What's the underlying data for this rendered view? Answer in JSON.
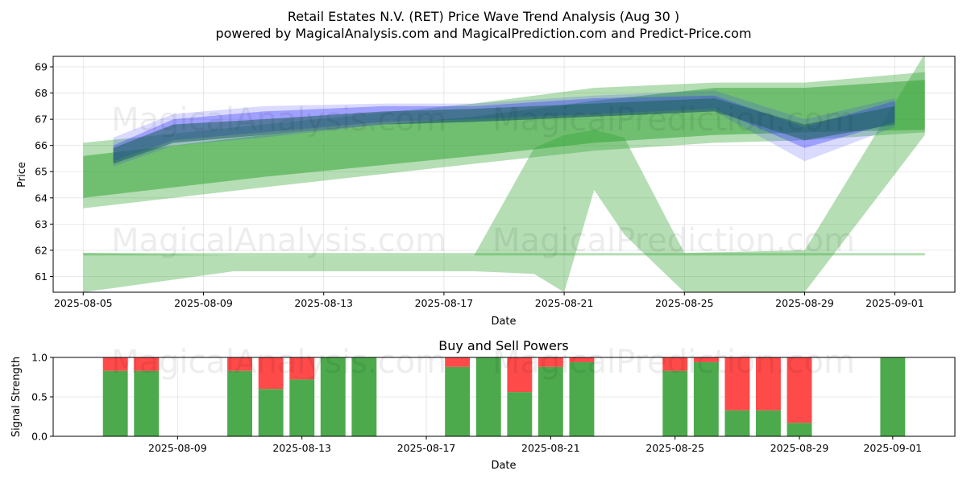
{
  "header": {
    "title": "Retail Estates N.V. (RET) Price Wave Trend Analysis (Aug 30 )",
    "subtitle": "powered by MagicalAnalysis.com and MagicalPrediction.com and Predict-Price.com"
  },
  "watermarks": [
    "MagicalAnalysis.com",
    "MagicalPrediction.com"
  ],
  "chart_data": [
    {
      "type": "area",
      "title": "",
      "xlabel": "Date",
      "ylabel": "Price",
      "x_tick_labels": [
        "2025-08-05",
        "2025-08-09",
        "2025-08-13",
        "2025-08-17",
        "2025-08-21",
        "2025-08-25",
        "2025-08-29",
        "2025-09-01"
      ],
      "x_tick_dates": [
        "2025-08-05",
        "2025-08-09",
        "2025-08-13",
        "2025-08-17",
        "2025-08-21",
        "2025-08-25",
        "2025-08-29",
        "2025-09-01"
      ],
      "xlim": [
        "2025-08-04",
        "2025-09-03"
      ],
      "ylim": [
        60.4,
        69.4
      ],
      "y_ticks": [
        61,
        62,
        63,
        64,
        65,
        66,
        67,
        68,
        69
      ],
      "grid": true,
      "colors": {
        "blue": "#3333ff",
        "green": "#2ca02c",
        "teal": "#1b5e5a"
      },
      "series": [
        {
          "color": "green",
          "opacity": 0.35,
          "x": [
            "2025-08-05",
            "2025-08-08",
            "2025-08-11",
            "2025-08-14",
            "2025-08-17",
            "2025-08-20",
            "2025-08-23",
            "2025-08-26",
            "2025-08-29",
            "2025-09-02"
          ],
          "lower": [
            61.8,
            61.8,
            61.8,
            61.8,
            61.8,
            61.8,
            61.8,
            61.8,
            61.8,
            61.8
          ],
          "upper": [
            61.9,
            61.9,
            61.9,
            61.9,
            61.9,
            61.9,
            61.9,
            61.9,
            61.9,
            61.9
          ],
          "hide": true
        },
        {
          "color": "green",
          "opacity": 0.35,
          "x": [
            "2025-08-05",
            "2025-08-10",
            "2025-08-15",
            "2025-08-18",
            "2025-08-20",
            "2025-08-21",
            "2025-08-22",
            "2025-08-23",
            "2025-08-25",
            "2025-08-29",
            "2025-09-02"
          ],
          "lower": [
            60.4,
            61.2,
            61.2,
            61.2,
            61.1,
            60.4,
            64.3,
            62.6,
            60.4,
            60.4,
            66.4
          ],
          "upper": [
            61.9,
            61.8,
            61.8,
            61.8,
            65.9,
            66.4,
            66.6,
            66.3,
            61.9,
            62.0,
            69.5
          ]
        },
        {
          "color": "green",
          "opacity": 0.35,
          "x": [
            "2025-08-05",
            "2025-08-11",
            "2025-08-18",
            "2025-08-22",
            "2025-08-26",
            "2025-08-29",
            "2025-09-02"
          ],
          "lower": [
            63.6,
            64.4,
            65.3,
            65.8,
            66.1,
            66.2,
            66.5
          ],
          "upper": [
            66.1,
            66.8,
            67.6,
            68.2,
            68.4,
            68.4,
            68.8
          ]
        },
        {
          "color": "green",
          "opacity": 0.5,
          "x": [
            "2025-08-05",
            "2025-08-11",
            "2025-08-18",
            "2025-08-22",
            "2025-08-26",
            "2025-08-29",
            "2025-09-02"
          ],
          "lower": [
            64.0,
            64.8,
            65.6,
            66.1,
            66.4,
            66.5,
            66.6
          ],
          "upper": [
            65.6,
            66.4,
            67.1,
            67.7,
            68.2,
            68.2,
            68.5
          ]
        },
        {
          "color": "blue",
          "opacity": 0.18,
          "x": [
            "2025-08-06",
            "2025-08-08",
            "2025-08-11",
            "2025-08-15",
            "2025-08-18",
            "2025-08-22",
            "2025-08-26",
            "2025-08-29",
            "2025-09-01"
          ],
          "lower": [
            65.2,
            66.0,
            66.3,
            66.8,
            66.9,
            67.1,
            67.3,
            65.4,
            66.7
          ],
          "upper": [
            66.3,
            67.2,
            67.5,
            67.6,
            67.6,
            67.9,
            68.1,
            67.0,
            67.8
          ]
        },
        {
          "color": "blue",
          "opacity": 0.35,
          "x": [
            "2025-08-06",
            "2025-08-08",
            "2025-08-11",
            "2025-08-15",
            "2025-08-18",
            "2025-08-22",
            "2025-08-26",
            "2025-08-29",
            "2025-09-01"
          ],
          "lower": [
            65.4,
            66.2,
            66.5,
            66.9,
            67.0,
            67.2,
            67.4,
            65.9,
            66.9
          ],
          "upper": [
            66.0,
            67.0,
            67.3,
            67.5,
            67.5,
            67.8,
            67.9,
            66.7,
            67.7
          ]
        },
        {
          "color": "teal",
          "opacity": 0.55,
          "x": [
            "2025-08-06",
            "2025-08-08",
            "2025-08-11",
            "2025-08-15",
            "2025-08-18",
            "2025-08-22",
            "2025-08-26",
            "2025-08-29",
            "2025-09-01"
          ],
          "lower": [
            65.3,
            66.1,
            66.4,
            66.8,
            66.9,
            67.1,
            67.3,
            66.2,
            66.8
          ],
          "upper": [
            65.9,
            66.8,
            67.0,
            67.3,
            67.4,
            67.6,
            67.8,
            66.8,
            67.5
          ]
        }
      ]
    },
    {
      "type": "bar",
      "title": "Buy and Sell Powers",
      "xlabel": "Date",
      "ylabel": "Signal Strength",
      "x_tick_labels": [
        "2025-08-09",
        "2025-08-13",
        "2025-08-17",
        "2025-08-21",
        "2025-08-25",
        "2025-08-29",
        "2025-09-01"
      ],
      "x_tick_dates": [
        "2025-08-09",
        "2025-08-13",
        "2025-08-17",
        "2025-08-21",
        "2025-08-25",
        "2025-08-29",
        "2025-09-01"
      ],
      "xlim": [
        "2025-08-05",
        "2025-09-03"
      ],
      "ylim": [
        0,
        1
      ],
      "y_ticks": [
        0.0,
        0.5,
        1.0
      ],
      "y_tick_labels": [
        "0.0",
        "0.5",
        "1.0"
      ],
      "grid": true,
      "colors": {
        "buy": "#4caa4c",
        "sell": "#ff4a4a"
      },
      "series": [
        {
          "name": "Buy",
          "dates": [
            "2025-08-07",
            "2025-08-08",
            "2025-08-11",
            "2025-08-12",
            "2025-08-13",
            "2025-08-14",
            "2025-08-15",
            "2025-08-18",
            "2025-08-19",
            "2025-08-20",
            "2025-08-21",
            "2025-08-22",
            "2025-08-25",
            "2025-08-26",
            "2025-08-27",
            "2025-08-28",
            "2025-08-29",
            "2025-09-01"
          ],
          "values": [
            0.83,
            0.83,
            0.83,
            0.6,
            0.72,
            1.0,
            1.0,
            0.88,
            1.0,
            0.56,
            0.88,
            0.94,
            0.83,
            0.94,
            0.33,
            0.33,
            0.17,
            1.0
          ]
        },
        {
          "name": "Sell",
          "dates": [
            "2025-08-07",
            "2025-08-08",
            "2025-08-11",
            "2025-08-12",
            "2025-08-13",
            "2025-08-14",
            "2025-08-15",
            "2025-08-18",
            "2025-08-19",
            "2025-08-20",
            "2025-08-21",
            "2025-08-22",
            "2025-08-25",
            "2025-08-26",
            "2025-08-27",
            "2025-08-28",
            "2025-08-29",
            "2025-09-01"
          ],
          "values": [
            0.17,
            0.17,
            0.17,
            0.4,
            0.28,
            0.0,
            0.0,
            0.12,
            0.0,
            0.44,
            0.12,
            0.06,
            0.17,
            0.06,
            0.67,
            0.67,
            0.83,
            0.0
          ]
        }
      ]
    }
  ]
}
